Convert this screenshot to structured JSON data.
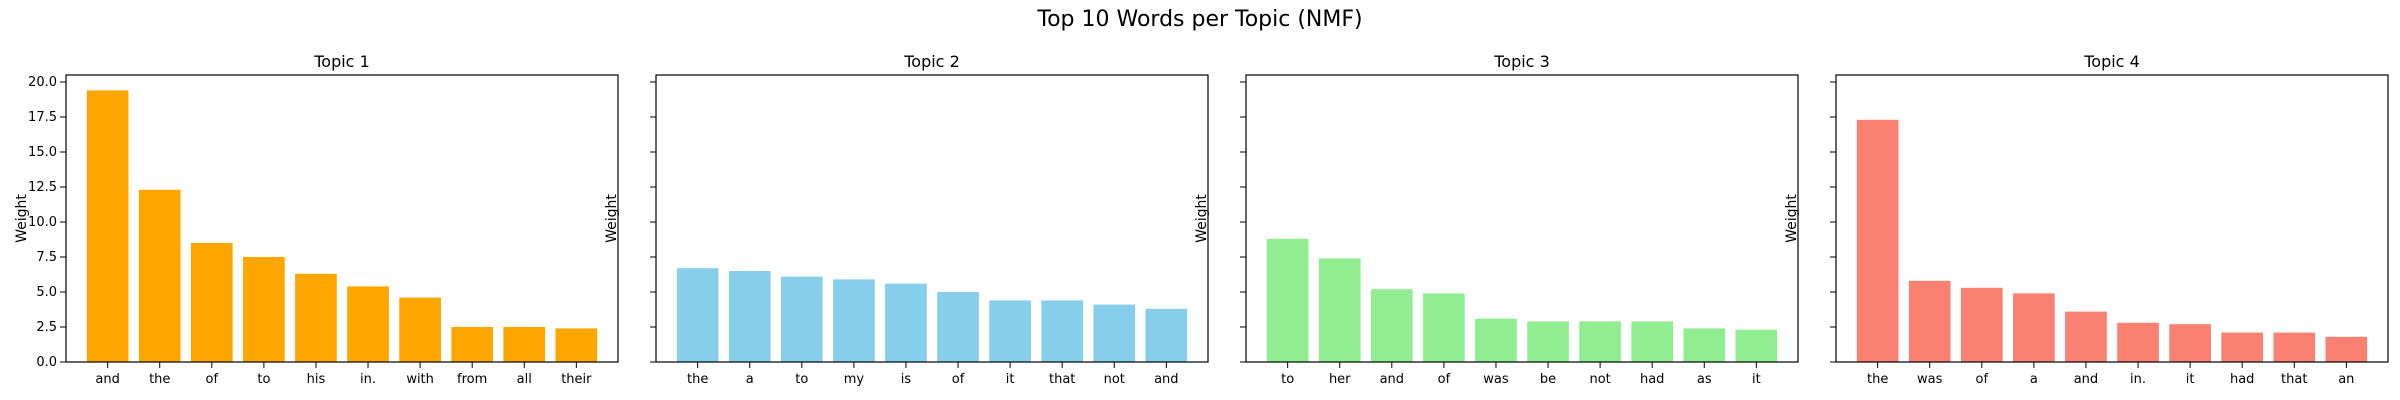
{
  "figure": {
    "title": "Top 10 Words per Topic (NMF)"
  },
  "chart_data": [
    {
      "type": "bar",
      "title": "Topic 1",
      "xlabel": "",
      "ylabel": "Weight",
      "ylim": [
        0,
        20.5
      ],
      "yticks": [
        "0.0",
        "2.5",
        "5.0",
        "7.5",
        "10.0",
        "12.5",
        "15.0",
        "17.5",
        "20.0"
      ],
      "show_ytick_labels": true,
      "color": "#ffa500",
      "categories": [
        "and",
        "the",
        "of",
        "to",
        "his",
        "in.",
        "with",
        "from",
        "all",
        "their"
      ],
      "values": [
        19.4,
        12.3,
        8.5,
        7.5,
        6.3,
        5.4,
        4.6,
        2.5,
        2.5,
        2.4
      ]
    },
    {
      "type": "bar",
      "title": "Topic 2",
      "xlabel": "",
      "ylabel": "Weight",
      "ylim": [
        0,
        20.5
      ],
      "yticks": [
        "0.0",
        "2.5",
        "5.0",
        "7.5",
        "10.0",
        "12.5",
        "15.0",
        "17.5",
        "20.0"
      ],
      "show_ytick_labels": false,
      "color": "#87ceeb",
      "categories": [
        "the",
        "a",
        "to",
        "my",
        "is",
        "of",
        "it",
        "that",
        "not",
        "and"
      ],
      "values": [
        6.7,
        6.5,
        6.1,
        5.9,
        5.6,
        5.0,
        4.4,
        4.4,
        4.1,
        3.8
      ]
    },
    {
      "type": "bar",
      "title": "Topic 3",
      "xlabel": "",
      "ylabel": "Weight",
      "ylim": [
        0,
        20.5
      ],
      "yticks": [
        "0.0",
        "2.5",
        "5.0",
        "7.5",
        "10.0",
        "12.5",
        "15.0",
        "17.5",
        "20.0"
      ],
      "show_ytick_labels": false,
      "color": "#90ee90",
      "categories": [
        "to",
        "her",
        "and",
        "of",
        "was",
        "be",
        "not",
        "had",
        "as",
        "it"
      ],
      "values": [
        8.8,
        7.4,
        5.2,
        4.9,
        3.1,
        2.9,
        2.9,
        2.9,
        2.4,
        2.3
      ]
    },
    {
      "type": "bar",
      "title": "Topic 4",
      "xlabel": "",
      "ylabel": "Weight",
      "ylim": [
        0,
        20.5
      ],
      "yticks": [
        "0.0",
        "2.5",
        "5.0",
        "7.5",
        "10.0",
        "12.5",
        "15.0",
        "17.5",
        "20.0"
      ],
      "show_ytick_labels": false,
      "color": "#fa8072",
      "categories": [
        "the",
        "was",
        "of",
        "a",
        "and",
        "in.",
        "it",
        "had",
        "that",
        "an"
      ],
      "values": [
        17.3,
        5.8,
        5.3,
        4.9,
        3.6,
        2.8,
        2.7,
        2.1,
        2.1,
        1.8
      ]
    }
  ]
}
